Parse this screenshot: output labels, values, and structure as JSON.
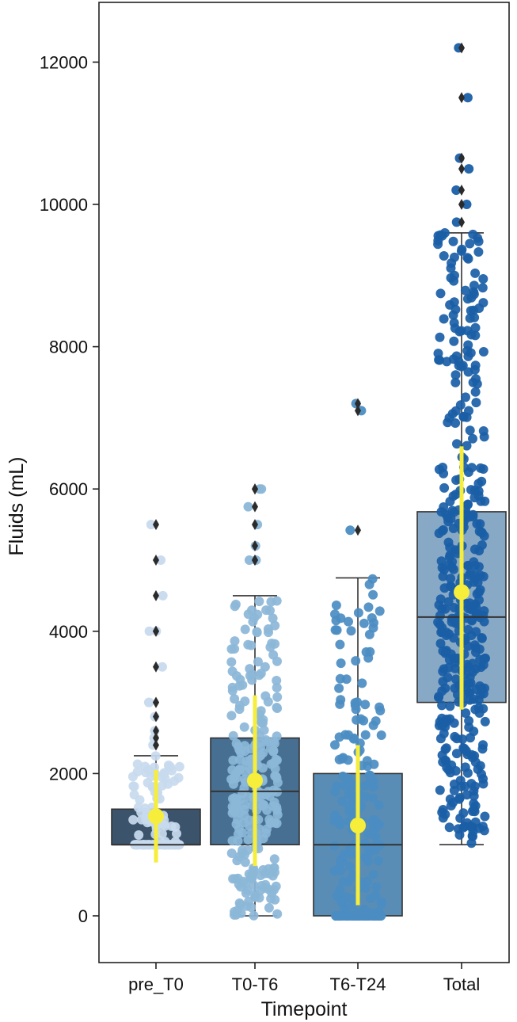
{
  "chart_data": {
    "type": "box",
    "xlabel": "Timepoint",
    "ylabel": "Fluids (mL)",
    "ylim": [
      -1000,
      12900
    ],
    "yticks": [
      0,
      2000,
      4000,
      6000,
      8000,
      10000,
      12000
    ],
    "grid": false,
    "categories": [
      "pre_T0",
      "T0-T6",
      "T6-T24",
      "Total"
    ],
    "box_colors": [
      "#3b536b",
      "#476f91",
      "#5a8db5",
      "#88a9c6"
    ],
    "point_colors": [
      "#c8daee",
      "#8cb7d8",
      "#4b8dc2",
      "#1a5ea6"
    ],
    "mean_color": "#f6ee3a",
    "boxes": [
      {
        "category": "pre_T0",
        "q1": 1000,
        "median": 1000,
        "q3": 1500,
        "whisker_low": 1000,
        "whisker_high": 2250,
        "mean": 1400,
        "mean_ci": [
          750,
          2050
        ],
        "outliers": [
          2400,
          2500,
          2600,
          2800,
          3000,
          3000,
          3500,
          4000,
          4000,
          4500,
          5000,
          5500
        ],
        "n_points": 130
      },
      {
        "category": "T0-T6",
        "q1": 1000,
        "median": 1750,
        "q3": 2500,
        "whisker_low": 0,
        "whisker_high": 4500,
        "mean": 1900,
        "mean_ci": [
          700,
          3100
        ],
        "outliers": [
          5000,
          5000,
          5200,
          5500,
          5750,
          6000,
          6000
        ],
        "n_points": 260
      },
      {
        "category": "T6-T24",
        "q1": 0,
        "median": 1000,
        "q3": 2000,
        "whisker_low": 0,
        "whisker_high": 4750,
        "mean": 1270,
        "mean_ci": [
          150,
          2400
        ],
        "outliers": [
          5420,
          7100,
          7200
        ],
        "n_points": 230
      },
      {
        "category": "Total",
        "q1": 3000,
        "median": 4200,
        "q3": 5680,
        "whisker_low": 1000,
        "whisker_high": 9600,
        "mean": 4550,
        "mean_ci": [
          2900,
          6600
        ],
        "outliers": [
          9750,
          10000,
          10200,
          10500,
          10650,
          11500,
          12200
        ],
        "n_points": 420
      }
    ]
  }
}
